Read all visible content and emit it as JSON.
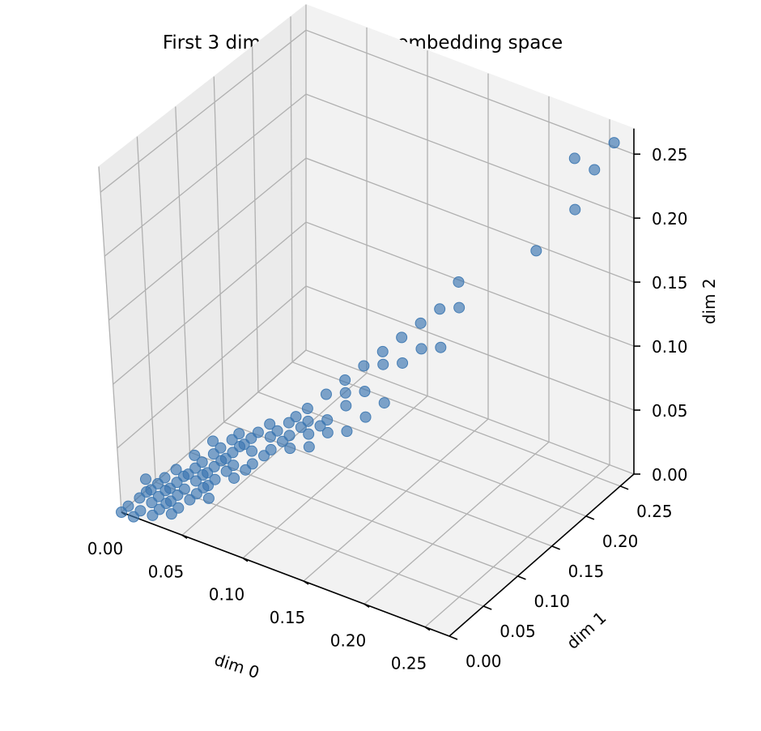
{
  "chart_data": {
    "type": "scatter",
    "projection": "3d",
    "title": "First 3 dimensions in the embedding space",
    "xlabel": "dim 0",
    "ylabel": "dim 1",
    "zlabel": "dim 2",
    "xlim": [
      0,
      0.27
    ],
    "ylim": [
      0,
      0.27
    ],
    "zlim": [
      0,
      0.27
    ],
    "xticks": [
      "0.00",
      "0.05",
      "0.10",
      "0.15",
      "0.20",
      "0.25"
    ],
    "yticks": [
      "0.00",
      "0.05",
      "0.10",
      "0.15",
      "0.20",
      "0.25"
    ],
    "zticks": [
      "0.00",
      "0.05",
      "0.10",
      "0.15",
      "0.20",
      "0.25"
    ],
    "grid": true,
    "marker_color": "#3a75b0",
    "marker_alpha": 0.65,
    "points": [
      [
        0.26,
        0.26,
        0.26
      ],
      [
        0.24,
        0.24,
        0.25
      ],
      [
        0.25,
        0.25,
        0.24
      ],
      [
        0.24,
        0.24,
        0.21
      ],
      [
        0.22,
        0.22,
        0.18
      ],
      [
        0.18,
        0.18,
        0.16
      ],
      [
        0.18,
        0.18,
        0.14
      ],
      [
        0.17,
        0.17,
        0.14
      ],
      [
        0.16,
        0.16,
        0.13
      ],
      [
        0.15,
        0.15,
        0.12
      ],
      [
        0.16,
        0.16,
        0.11
      ],
      [
        0.17,
        0.17,
        0.11
      ],
      [
        0.14,
        0.14,
        0.11
      ],
      [
        0.15,
        0.15,
        0.1
      ],
      [
        0.14,
        0.14,
        0.1
      ],
      [
        0.13,
        0.13,
        0.1
      ],
      [
        0.12,
        0.12,
        0.09
      ],
      [
        0.13,
        0.13,
        0.08
      ],
      [
        0.12,
        0.12,
        0.07
      ],
      [
        0.11,
        0.11,
        0.08
      ],
      [
        0.11,
        0.11,
        0.06
      ],
      [
        0.1,
        0.1,
        0.07
      ],
      [
        0.1,
        0.1,
        0.06
      ],
      [
        0.09,
        0.09,
        0.06
      ],
      [
        0.11,
        0.11,
        0.05
      ],
      [
        0.1,
        0.1,
        0.04
      ],
      [
        0.12,
        0.12,
        0.05
      ],
      [
        0.09,
        0.09,
        0.05
      ],
      [
        0.08,
        0.08,
        0.06
      ],
      [
        0.08,
        0.08,
        0.05
      ],
      [
        0.07,
        0.07,
        0.05
      ],
      [
        0.06,
        0.06,
        0.04
      ],
      [
        0.12,
        0.12,
        0.08
      ],
      [
        0.14,
        0.14,
        0.07
      ],
      [
        0.13,
        0.13,
        0.06
      ],
      [
        0.07,
        0.07,
        0.04
      ],
      [
        0.06,
        0.06,
        0.05
      ],
      [
        0.05,
        0.05,
        0.04
      ],
      [
        0.06,
        0.06,
        0.03
      ],
      [
        0.05,
        0.05,
        0.03
      ],
      [
        0.04,
        0.04,
        0.03
      ],
      [
        0.05,
        0.05,
        0.02
      ],
      [
        0.04,
        0.04,
        0.02
      ],
      [
        0.03,
        0.03,
        0.02
      ],
      [
        0.04,
        0.04,
        0.01
      ],
      [
        0.03,
        0.03,
        0.01
      ],
      [
        0.02,
        0.02,
        0.01
      ],
      [
        0.03,
        0.04,
        0.02
      ],
      [
        0.04,
        0.05,
        0.03
      ],
      [
        0.05,
        0.06,
        0.03
      ],
      [
        0.06,
        0.05,
        0.04
      ],
      [
        0.05,
        0.04,
        0.02
      ],
      [
        0.03,
        0.02,
        0.01
      ],
      [
        0.02,
        0.03,
        0.02
      ],
      [
        0.04,
        0.03,
        0.01
      ],
      [
        0.06,
        0.07,
        0.04
      ],
      [
        0.07,
        0.06,
        0.03
      ],
      [
        0.08,
        0.07,
        0.04
      ],
      [
        0.07,
        0.08,
        0.05
      ],
      [
        0.02,
        0.01,
        0.01
      ],
      [
        0.01,
        0.02,
        0.01
      ],
      [
        0.01,
        0.01,
        0.0
      ],
      [
        0.02,
        0.02,
        0.0
      ],
      [
        0.03,
        0.03,
        0.0
      ],
      [
        0.01,
        0.01,
        0.01
      ],
      [
        0.0,
        0.01,
        0.0
      ],
      [
        0.01,
        0.0,
        0.0
      ],
      [
        0.02,
        0.01,
        0.0
      ],
      [
        0.0,
        0.0,
        0.0
      ],
      [
        0.03,
        0.02,
        0.02
      ],
      [
        0.02,
        0.03,
        0.01
      ],
      [
        0.04,
        0.04,
        0.04
      ],
      [
        0.05,
        0.05,
        0.05
      ],
      [
        0.03,
        0.03,
        0.03
      ],
      [
        0.06,
        0.06,
        0.02
      ],
      [
        0.07,
        0.07,
        0.03
      ],
      [
        0.08,
        0.08,
        0.04
      ],
      [
        0.09,
        0.09,
        0.04
      ],
      [
        0.1,
        0.1,
        0.05
      ],
      [
        0.04,
        0.05,
        0.02
      ],
      [
        0.05,
        0.04,
        0.03
      ],
      [
        0.06,
        0.05,
        0.03
      ],
      [
        0.05,
        0.06,
        0.04
      ],
      [
        0.02,
        0.02,
        0.02
      ],
      [
        0.01,
        0.02,
        0.02
      ],
      [
        0.02,
        0.01,
        0.02
      ],
      [
        0.04,
        0.03,
        0.03
      ],
      [
        0.03,
        0.04,
        0.01
      ],
      [
        0.06,
        0.07,
        0.05
      ],
      [
        0.07,
        0.06,
        0.05
      ],
      [
        0.08,
        0.09,
        0.05
      ],
      [
        0.09,
        0.08,
        0.05
      ],
      [
        0.09,
        0.1,
        0.06
      ],
      [
        0.1,
        0.09,
        0.06
      ],
      [
        0.11,
        0.1,
        0.06
      ],
      [
        0.02,
        0.03,
        0.0
      ],
      [
        0.03,
        0.02,
        0.0
      ],
      [
        0.04,
        0.05,
        0.01
      ],
      [
        0.05,
        0.04,
        0.01
      ]
    ]
  }
}
